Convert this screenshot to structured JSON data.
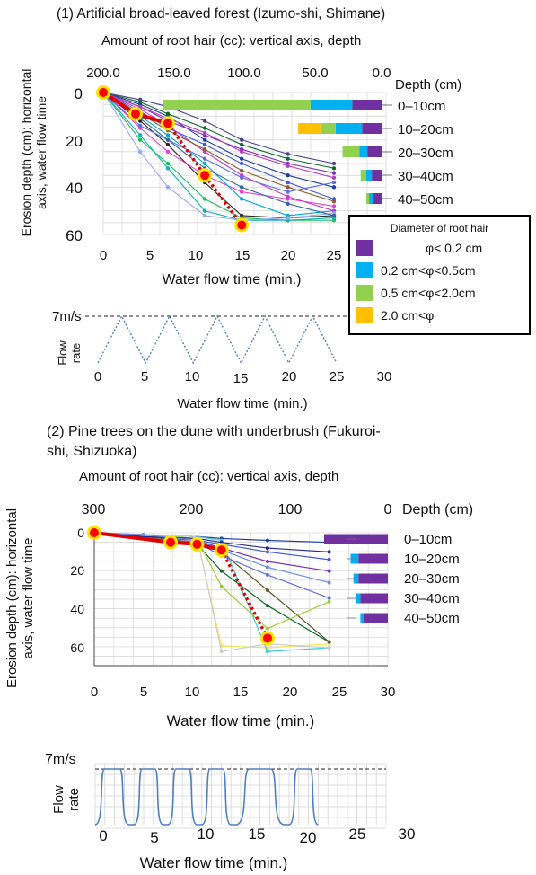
{
  "panel1": {
    "title": "(1) Artificial broad-leaved forest (Izumo-shi, Shimane)",
    "top_axis_label": "Amount of root hair (cc): vertical axis, depth",
    "top_ticks": [
      "200.0",
      "150.0",
      "100.0",
      "50.0",
      "0.0"
    ],
    "depth_header": "Depth (cm)",
    "depth_labels": [
      "0–10cm",
      "10–20cm",
      "20–30cm",
      "30–40cm",
      "40–50cm"
    ],
    "y_label_line1": "Erosion depth (cm): horizontal",
    "y_label_line2": "axis, water flow time",
    "y_ticks": [
      "0",
      "20",
      "40",
      "60"
    ],
    "x_ticks": [
      "0",
      "5",
      "10",
      "15",
      "20",
      "25"
    ],
    "x_label": "Water flow time (min.)",
    "flow": {
      "max_label": "7m/s",
      "y_label_line1": "Flow",
      "y_label_line2": "rate",
      "x_ticks": [
        "0",
        "5",
        "10",
        "15",
        "20",
        "25",
        "30"
      ],
      "x_label": "Water flow time (min.)"
    }
  },
  "panel2": {
    "title_line1": "(2)  Pine trees on the dune with underbrush (Fukuroi-",
    "title_line2": "shi, Shizuoka)",
    "top_axis_label": "Amount of root hair (cc): vertical axis, depth",
    "top_ticks": [
      "300",
      "200",
      "100",
      "0"
    ],
    "depth_header": "Depth (cm)",
    "depth_labels": [
      "0–10cm",
      "10–20cm",
      "20–30cm",
      "30–40cm",
      "40–50cm"
    ],
    "y_label_line1": "Erosion depth (cm): horizontal",
    "y_label_line2": "axis, water flow time",
    "y_ticks": [
      "0",
      "20",
      "40",
      "60"
    ],
    "x_ticks": [
      "0",
      "5",
      "10",
      "15",
      "20",
      "25",
      "30"
    ],
    "x_label": "Water flow time (min.)",
    "flow": {
      "max_label": "7m/s",
      "y_label_line1": "Flow",
      "y_label_line2": "rate",
      "x_ticks": [
        "0",
        "5",
        "10",
        "15",
        "20",
        "25",
        "30"
      ],
      "x_label": "Water flow time (min.)"
    }
  },
  "legend": {
    "title": "Diameter of root hair",
    "items": [
      {
        "label": "φ< 0.2 cm",
        "color": "#7030a0"
      },
      {
        "label": "0.2 cm<φ<0.5cm",
        "color": "#00b0f0"
      },
      {
        "label": "0.5 cm<φ<2.0cm",
        "color": "#92d050"
      },
      {
        "label": "2.0 cm<φ",
        "color": "#ffc000"
      }
    ]
  },
  "colors": {
    "purple": "#7030a0",
    "blue": "#00b0f0",
    "green": "#92d050",
    "orange": "#ffc000",
    "highlight_line": "#e00000",
    "highlight_marker_fill": "#ff0000",
    "highlight_marker_ring": "#ffe000",
    "flow_line": "#4f7fc0"
  },
  "chart_data": [
    {
      "id": "p1_erosion",
      "type": "line",
      "title": "(1) Artificial broad-leaved forest (Izumo-shi, Shimane)",
      "xlabel": "Water flow time (min.)",
      "ylabel": "Erosion depth (cm): horizontal axis, water flow time",
      "xlim": [
        0,
        25
      ],
      "ylim": [
        0,
        60
      ],
      "y_inverted": true,
      "grid": true,
      "highlight_series": {
        "x": [
          0,
          3.5,
          7,
          11,
          15
        ],
        "y": [
          0,
          9,
          13,
          35,
          56
        ]
      },
      "other_series": [
        {
          "x": [
            0,
            4,
            7,
            11,
            15,
            20,
            25
          ],
          "y": [
            0,
            5,
            10,
            20,
            28,
            35,
            40
          ]
        },
        {
          "x": [
            0,
            4,
            7,
            11,
            15,
            20,
            25
          ],
          "y": [
            0,
            8,
            15,
            22,
            30,
            38,
            45
          ]
        },
        {
          "x": [
            0,
            4,
            7,
            11,
            15,
            20,
            25
          ],
          "y": [
            0,
            12,
            22,
            38,
            52,
            53,
            52
          ]
        },
        {
          "x": [
            0,
            4,
            7,
            11,
            15,
            20,
            25
          ],
          "y": [
            0,
            6,
            12,
            18,
            24,
            30,
            34
          ]
        },
        {
          "x": [
            0,
            4,
            7,
            11,
            15,
            20,
            25
          ],
          "y": [
            0,
            15,
            25,
            35,
            42,
            45,
            48
          ]
        },
        {
          "x": [
            0,
            4,
            7,
            11,
            15,
            20,
            25
          ],
          "y": [
            0,
            10,
            18,
            30,
            45,
            52,
            50
          ]
        },
        {
          "x": [
            0,
            4,
            7,
            11,
            15,
            20,
            25
          ],
          "y": [
            0,
            4,
            9,
            15,
            22,
            28,
            32
          ]
        },
        {
          "x": [
            0,
            4,
            7,
            11,
            15,
            20,
            25
          ],
          "y": [
            0,
            20,
            30,
            45,
            53,
            54,
            54
          ]
        },
        {
          "x": [
            0,
            4,
            7,
            11,
            15,
            20,
            25
          ],
          "y": [
            0,
            7,
            14,
            25,
            35,
            44,
            50
          ]
        },
        {
          "x": [
            0,
            4,
            7,
            11,
            15,
            20,
            25
          ],
          "y": [
            0,
            14,
            20,
            28,
            36,
            42,
            38
          ]
        },
        {
          "x": [
            0,
            4,
            7,
            11,
            15,
            20,
            25
          ],
          "y": [
            0,
            3,
            6,
            12,
            20,
            26,
            30
          ]
        },
        {
          "x": [
            0,
            4,
            7,
            11,
            15,
            20,
            25
          ],
          "y": [
            0,
            18,
            32,
            50,
            54,
            54,
            53
          ]
        },
        {
          "x": [
            0,
            4,
            7,
            11,
            15,
            20,
            25
          ],
          "y": [
            0,
            9,
            16,
            24,
            33,
            40,
            46
          ]
        },
        {
          "x": [
            0,
            4,
            7,
            11,
            15,
            20,
            25
          ],
          "y": [
            0,
            25,
            40,
            52,
            54,
            53,
            51
          ]
        },
        {
          "x": [
            0,
            4,
            7,
            11,
            15,
            20,
            25
          ],
          "y": [
            0,
            11,
            20,
            32,
            40,
            47,
            52
          ]
        },
        {
          "x": [
            0,
            4,
            7,
            11,
            15,
            20,
            25
          ],
          "y": [
            0,
            6,
            11,
            17,
            25,
            31,
            36
          ]
        }
      ]
    },
    {
      "id": "p1_root_hair",
      "type": "bar",
      "orientation": "horizontal",
      "stacked": true,
      "categories": [
        "0–10cm",
        "10–20cm",
        "20–30cm",
        "30–40cm",
        "40–50cm"
      ],
      "xlim": [
        200,
        0
      ],
      "series": [
        {
          "name": "φ< 0.2 cm",
          "values": [
            21,
            14,
            10,
            7,
            6
          ]
        },
        {
          "name": "0.2 cm<φ<0.5cm",
          "values": [
            30,
            19,
            6,
            4,
            3
          ]
        },
        {
          "name": "0.5 cm<φ<2.0cm",
          "values": [
            106,
            11,
            12,
            4,
            2
          ]
        },
        {
          "name": "2.0 cm<φ",
          "values": [
            0,
            16,
            0,
            0,
            0
          ]
        }
      ]
    },
    {
      "id": "p1_flow",
      "type": "line",
      "xlim": [
        0,
        30
      ],
      "max_label": "7m/s",
      "x": [
        0,
        2.5,
        5,
        7.5,
        10,
        12.5,
        15,
        17.5,
        20,
        22.5,
        25
      ],
      "y": [
        0,
        7,
        0,
        7,
        0,
        7,
        0,
        7,
        0,
        7,
        0
      ]
    },
    {
      "id": "p2_erosion",
      "type": "line",
      "title": "(2) Pine trees on the dune with underbrush (Fukuroi-shi, Shizuoka)",
      "xlabel": "Water flow time (min.)",
      "ylabel": "Erosion depth (cm): horizontal axis, water flow time",
      "xlim": [
        0,
        30
      ],
      "ylim": [
        0,
        60
      ],
      "y_inverted": true,
      "grid": true,
      "highlight_series": {
        "x": [
          0,
          7.8,
          10.5,
          13,
          17.7
        ],
        "y": [
          0,
          5,
          6,
          9,
          55
        ]
      },
      "other_series": [
        {
          "x": [
            0,
            5,
            10.5,
            13,
            17.7,
            24
          ],
          "y": [
            0,
            1,
            2,
            3,
            4,
            5
          ]
        },
        {
          "x": [
            0,
            5,
            10.5,
            13,
            17.7,
            24
          ],
          "y": [
            0,
            2,
            4,
            6,
            10,
            14
          ]
        },
        {
          "x": [
            0,
            5,
            10.5,
            13,
            17.7,
            24
          ],
          "y": [
            0,
            3,
            6,
            20,
            38,
            57
          ]
        },
        {
          "x": [
            0,
            5,
            10.5,
            13,
            17.7,
            24
          ],
          "y": [
            0,
            2,
            3,
            59,
            60,
            58
          ]
        },
        {
          "x": [
            0,
            5,
            10.5,
            13,
            17.7,
            24
          ],
          "y": [
            0,
            1,
            2,
            4,
            62,
            60
          ]
        },
        {
          "x": [
            0,
            5,
            10.5,
            13,
            17.7,
            24
          ],
          "y": [
            0,
            2,
            5,
            10,
            30,
            57
          ]
        },
        {
          "x": [
            0,
            5,
            10.5,
            13,
            17.7,
            24
          ],
          "y": [
            0,
            1,
            3,
            28,
            50,
            36
          ]
        },
        {
          "x": [
            0,
            5,
            10.5,
            13,
            17.7,
            24
          ],
          "y": [
            0,
            2,
            4,
            8,
            15,
            20
          ]
        },
        {
          "x": [
            0,
            5,
            10.5,
            13,
            17.7,
            24
          ],
          "y": [
            0,
            3,
            5,
            12,
            22,
            34
          ]
        },
        {
          "x": [
            0,
            5,
            10.5,
            13,
            17.7,
            24
          ],
          "y": [
            0,
            1,
            2,
            62,
            58,
            60
          ]
        },
        {
          "x": [
            0,
            5,
            10.5,
            13,
            17.7,
            24
          ],
          "y": [
            0,
            2,
            3,
            5,
            8,
            10
          ]
        },
        {
          "x": [
            0,
            5,
            10.5,
            13,
            17.7,
            24
          ],
          "y": [
            0,
            1,
            4,
            9,
            18,
            26
          ]
        }
      ]
    },
    {
      "id": "p2_root_hair",
      "type": "bar",
      "orientation": "horizontal",
      "stacked": true,
      "categories": [
        "0–10cm",
        "10–20cm",
        "20–30cm",
        "30–40cm",
        "40–50cm"
      ],
      "xlim": [
        300,
        0
      ],
      "series": [
        {
          "name": "φ< 0.2 cm",
          "values": [
            65,
            30,
            30,
            28,
            25
          ]
        },
        {
          "name": "0.2 cm<φ<0.5cm",
          "values": [
            0,
            8,
            5,
            5,
            3
          ]
        },
        {
          "name": "0.5 cm<φ<2.0cm",
          "values": [
            0,
            0,
            0,
            0,
            0
          ]
        },
        {
          "name": "2.0 cm<φ",
          "values": [
            0,
            0,
            0,
            0,
            0
          ]
        }
      ]
    },
    {
      "id": "p2_flow",
      "type": "line",
      "xlim": [
        0,
        30
      ],
      "max_label": "7m/s",
      "cycles": [
        [
          0,
          3.5
        ],
        [
          4,
          7
        ],
        [
          7.5,
          10.5
        ],
        [
          11,
          14
        ],
        [
          14.5,
          19.5
        ],
        [
          20,
          23
        ]
      ],
      "y_max": 7
    }
  ]
}
